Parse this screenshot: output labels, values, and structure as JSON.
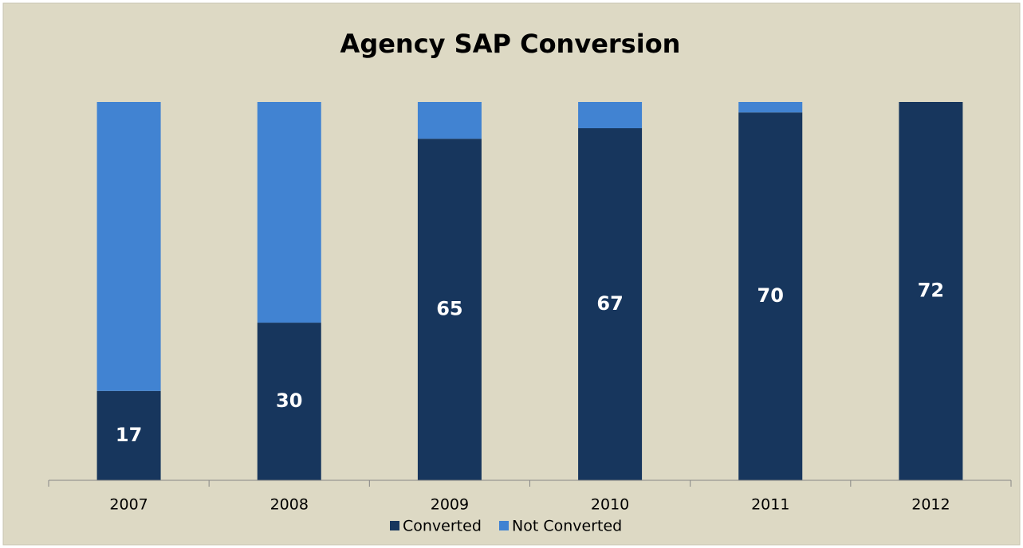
{
  "chart_data": {
    "type": "stacked_bar",
    "title": "Agency SAP Conversion",
    "categories": [
      "2007",
      "2008",
      "2009",
      "2010",
      "2011",
      "2012"
    ],
    "series": [
      {
        "name": "Converted",
        "color": "#17365d",
        "values": [
          17,
          30,
          65,
          67,
          70,
          72
        ],
        "labels": true
      },
      {
        "name": "Not Converted",
        "color": "#4183d2",
        "values": [
          55,
          42,
          7,
          5,
          2,
          0
        ],
        "labels": false
      }
    ],
    "ylim": [
      0,
      72
    ],
    "legend": "bottom"
  }
}
